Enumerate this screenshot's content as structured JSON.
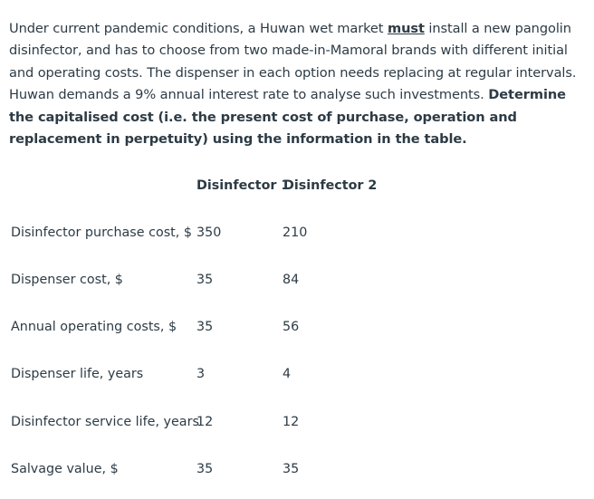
{
  "problem": {
    "part1": "Under current pandemic conditions, a Huwan wet market ",
    "emphasis": "must",
    "part2": " install a new pangolin disinfector, and has to choose from two made-in-Mamoral brands with different initial and operating costs.  The dispenser in each option needs replacing at regular intervals.  Huwan demands a 9% annual interest rate to analyse such investments.  ",
    "bold_part": "Determine the capitalised cost (i.e. the present cost of purchase, operation and replacement in perpetuity) using the information in the table."
  },
  "table": {
    "headers": [
      "Disinfector 1",
      "Disinfector 2"
    ],
    "rows": [
      {
        "label": "Disinfector purchase cost, $",
        "d1": "350",
        "d2": "210"
      },
      {
        "label": "Dispenser cost, $",
        "d1": "35",
        "d2": "84"
      },
      {
        "label": "Annual operating costs, $",
        "d1": "35",
        "d2": "56"
      },
      {
        "label": "Dispenser life, years",
        "d1": "3",
        "d2": "4"
      },
      {
        "label": "Disinfector service life, years",
        "d1": "12",
        "d2": "12"
      },
      {
        "label": "Salvage value, $",
        "d1": "35",
        "d2": "35"
      }
    ]
  }
}
